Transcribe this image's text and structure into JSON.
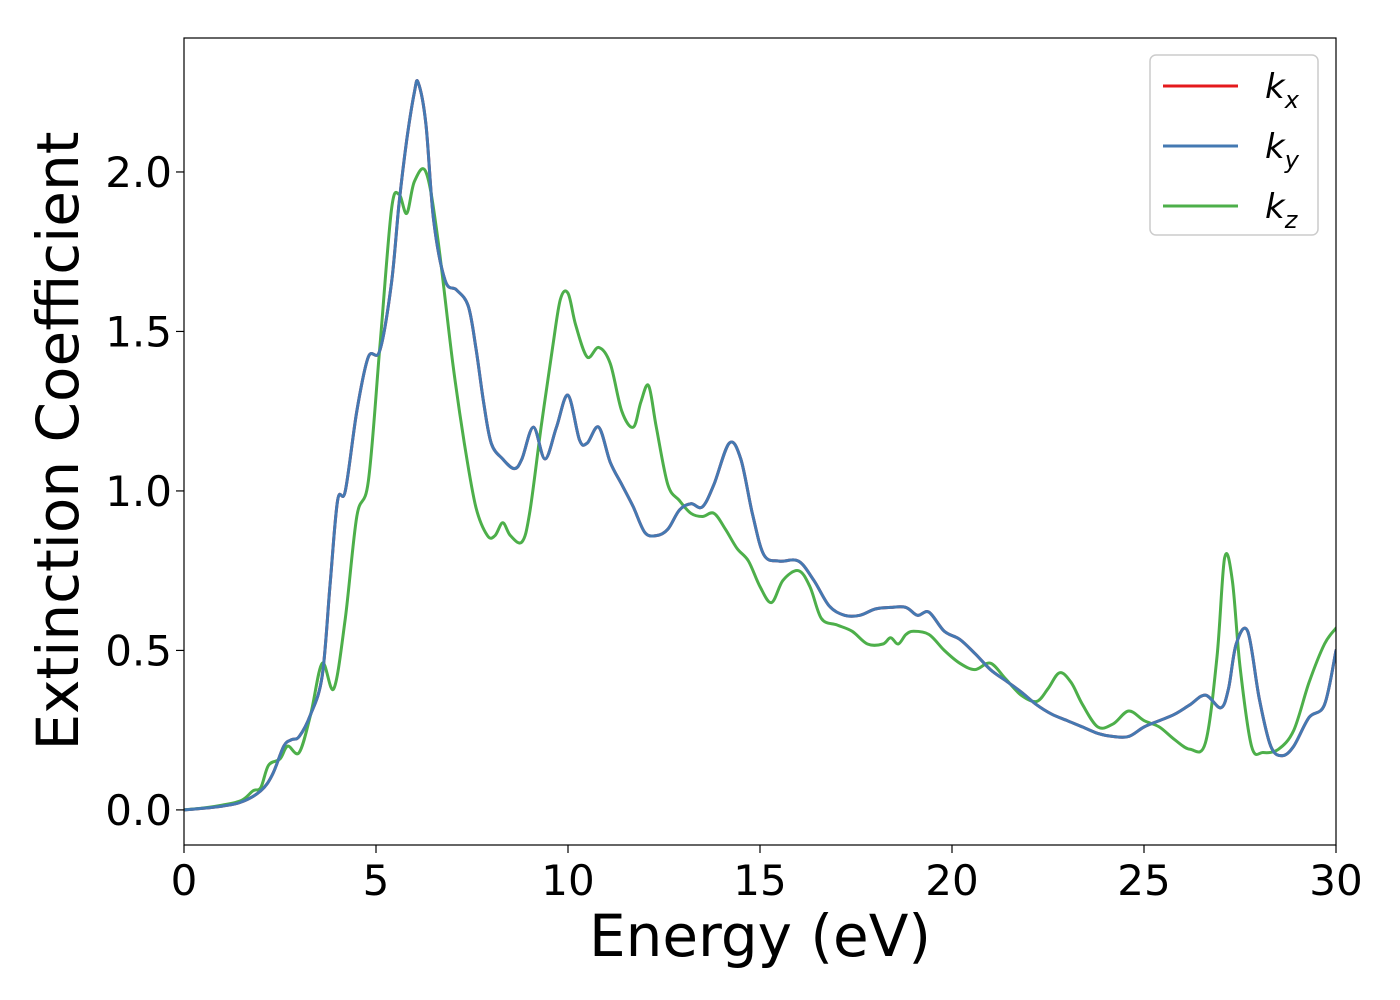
{
  "chart_data": {
    "type": "line",
    "title": "",
    "xlabel": "Energy (eV)",
    "ylabel": "Extinction Coefficient",
    "xlim": [
      0,
      30
    ],
    "ylim": [
      -0.11,
      2.42
    ],
    "xticks": [
      0,
      5,
      10,
      15,
      20,
      25,
      30
    ],
    "xtick_labels": [
      "0",
      "5",
      "10",
      "15",
      "20",
      "25",
      "30"
    ],
    "yticks": [
      0.0,
      0.5,
      1.0,
      1.5,
      2.0
    ],
    "ytick_labels": [
      "0.0",
      "0.5",
      "1.0",
      "1.5",
      "2.0"
    ],
    "grid": false,
    "legend_position": "top-right",
    "series": [
      {
        "name": "k_x",
        "label_main": "k",
        "label_sub": "x",
        "color": "#e41a1c",
        "x": [
          0,
          0.5,
          1,
          1.5,
          2,
          2.3,
          2.6,
          2.8,
          3,
          3.3,
          3.6,
          3.8,
          4,
          4.2,
          4.5,
          4.8,
          5.1,
          5.4,
          5.6,
          5.8,
          6,
          6.1,
          6.3,
          6.5,
          6.8,
          7.1,
          7.4,
          7.6,
          7.8,
          8,
          8.3,
          8.6,
          8.8,
          9.1,
          9.4,
          9.7,
          10,
          10.3,
          10.5,
          10.8,
          11.1,
          11.4,
          11.7,
          12,
          12.3,
          12.6,
          12.9,
          13.2,
          13.5,
          13.8,
          14.2,
          14.5,
          14.8,
          15.1,
          15.5,
          16,
          16.4,
          16.8,
          17.2,
          17.6,
          18,
          18.4,
          18.8,
          19.1,
          19.4,
          19.8,
          20.2,
          20.6,
          21,
          21.4,
          21.8,
          22.2,
          22.6,
          23,
          23.4,
          23.8,
          24.2,
          24.6,
          25,
          25.4,
          25.8,
          26.2,
          26.6,
          27,
          27.2,
          27.4,
          27.7,
          28,
          28.3,
          28.6,
          28.9,
          29.3,
          29.7,
          30
        ],
        "values": [
          0,
          0.005,
          0.012,
          0.025,
          0.06,
          0.11,
          0.2,
          0.22,
          0.23,
          0.3,
          0.42,
          0.7,
          0.97,
          1.0,
          1.25,
          1.42,
          1.44,
          1.65,
          1.9,
          2.1,
          2.25,
          2.28,
          2.15,
          1.85,
          1.66,
          1.63,
          1.58,
          1.45,
          1.28,
          1.15,
          1.1,
          1.07,
          1.1,
          1.2,
          1.1,
          1.2,
          1.3,
          1.16,
          1.15,
          1.2,
          1.09,
          1.02,
          0.95,
          0.87,
          0.86,
          0.88,
          0.94,
          0.96,
          0.95,
          1.02,
          1.15,
          1.1,
          0.93,
          0.8,
          0.78,
          0.78,
          0.72,
          0.64,
          0.61,
          0.61,
          0.63,
          0.635,
          0.635,
          0.61,
          0.62,
          0.56,
          0.535,
          0.49,
          0.44,
          0.405,
          0.37,
          0.33,
          0.3,
          0.28,
          0.26,
          0.24,
          0.23,
          0.23,
          0.26,
          0.28,
          0.3,
          0.33,
          0.36,
          0.32,
          0.38,
          0.52,
          0.56,
          0.35,
          0.2,
          0.17,
          0.2,
          0.29,
          0.33,
          0.5
        ]
      },
      {
        "name": "k_y",
        "label_main": "k",
        "label_sub": "y",
        "color": "#4479b2",
        "x": [
          0,
          0.5,
          1,
          1.5,
          2,
          2.3,
          2.6,
          2.8,
          3,
          3.3,
          3.6,
          3.8,
          4,
          4.2,
          4.5,
          4.8,
          5.1,
          5.4,
          5.6,
          5.8,
          6,
          6.1,
          6.3,
          6.5,
          6.8,
          7.1,
          7.4,
          7.6,
          7.8,
          8,
          8.3,
          8.6,
          8.8,
          9.1,
          9.4,
          9.7,
          10,
          10.3,
          10.5,
          10.8,
          11.1,
          11.4,
          11.7,
          12,
          12.3,
          12.6,
          12.9,
          13.2,
          13.5,
          13.8,
          14.2,
          14.5,
          14.8,
          15.1,
          15.5,
          16,
          16.4,
          16.8,
          17.2,
          17.6,
          18,
          18.4,
          18.8,
          19.1,
          19.4,
          19.8,
          20.2,
          20.6,
          21,
          21.4,
          21.8,
          22.2,
          22.6,
          23,
          23.4,
          23.8,
          24.2,
          24.6,
          25,
          25.4,
          25.8,
          26.2,
          26.6,
          27,
          27.2,
          27.4,
          27.7,
          28,
          28.3,
          28.6,
          28.9,
          29.3,
          29.7,
          30
        ],
        "values": [
          0,
          0.005,
          0.012,
          0.025,
          0.06,
          0.11,
          0.2,
          0.22,
          0.23,
          0.3,
          0.42,
          0.7,
          0.97,
          1.0,
          1.25,
          1.42,
          1.44,
          1.65,
          1.9,
          2.1,
          2.25,
          2.28,
          2.15,
          1.85,
          1.66,
          1.63,
          1.58,
          1.45,
          1.28,
          1.15,
          1.1,
          1.07,
          1.1,
          1.2,
          1.1,
          1.2,
          1.3,
          1.16,
          1.15,
          1.2,
          1.09,
          1.02,
          0.95,
          0.87,
          0.86,
          0.88,
          0.94,
          0.96,
          0.95,
          1.02,
          1.15,
          1.1,
          0.93,
          0.8,
          0.78,
          0.78,
          0.72,
          0.64,
          0.61,
          0.61,
          0.63,
          0.635,
          0.635,
          0.61,
          0.62,
          0.56,
          0.535,
          0.49,
          0.44,
          0.405,
          0.37,
          0.33,
          0.3,
          0.28,
          0.26,
          0.24,
          0.23,
          0.23,
          0.26,
          0.28,
          0.3,
          0.33,
          0.36,
          0.32,
          0.38,
          0.52,
          0.56,
          0.35,
          0.2,
          0.17,
          0.2,
          0.29,
          0.33,
          0.5
        ]
      },
      {
        "name": "k_z",
        "label_main": "k",
        "label_sub": "z",
        "color": "#4daf4a",
        "x": [
          0,
          0.5,
          1,
          1.5,
          1.8,
          2,
          2.2,
          2.5,
          2.7,
          3,
          3.3,
          3.6,
          3.9,
          4.2,
          4.5,
          4.8,
          5.1,
          5.4,
          5.6,
          5.8,
          6,
          6.3,
          6.6,
          7,
          7.3,
          7.6,
          7.9,
          8.1,
          8.3,
          8.5,
          8.8,
          9,
          9.3,
          9.6,
          9.8,
          10,
          10.2,
          10.5,
          10.8,
          11.1,
          11.4,
          11.7,
          11.9,
          12.1,
          12.3,
          12.6,
          12.9,
          13.2,
          13.5,
          13.8,
          14.1,
          14.4,
          14.7,
          15,
          15.3,
          15.6,
          16,
          16.3,
          16.6,
          17,
          17.4,
          17.8,
          18.2,
          18.4,
          18.6,
          18.8,
          19,
          19.4,
          19.8,
          20.2,
          20.6,
          21,
          21.4,
          21.8,
          22.2,
          22.5,
          22.8,
          23.1,
          23.4,
          23.8,
          24.2,
          24.6,
          25,
          25.4,
          25.8,
          26.2,
          26.6,
          26.9,
          27.1,
          27.3,
          27.5,
          27.8,
          28.1,
          28.5,
          28.9,
          29.3,
          29.7,
          30
        ],
        "values": [
          0,
          0.006,
          0.015,
          0.03,
          0.06,
          0.07,
          0.14,
          0.16,
          0.2,
          0.18,
          0.3,
          0.46,
          0.38,
          0.6,
          0.92,
          1.03,
          1.45,
          1.88,
          1.93,
          1.87,
          1.97,
          2.0,
          1.8,
          1.4,
          1.15,
          0.95,
          0.86,
          0.86,
          0.9,
          0.86,
          0.84,
          0.93,
          1.2,
          1.45,
          1.6,
          1.62,
          1.52,
          1.42,
          1.45,
          1.4,
          1.25,
          1.2,
          1.28,
          1.33,
          1.2,
          1.02,
          0.97,
          0.93,
          0.92,
          0.93,
          0.88,
          0.82,
          0.78,
          0.7,
          0.65,
          0.72,
          0.75,
          0.7,
          0.6,
          0.58,
          0.56,
          0.52,
          0.52,
          0.54,
          0.52,
          0.55,
          0.56,
          0.55,
          0.5,
          0.46,
          0.44,
          0.46,
          0.41,
          0.36,
          0.34,
          0.38,
          0.43,
          0.4,
          0.33,
          0.26,
          0.27,
          0.31,
          0.28,
          0.26,
          0.22,
          0.19,
          0.21,
          0.48,
          0.79,
          0.72,
          0.45,
          0.2,
          0.18,
          0.19,
          0.25,
          0.4,
          0.52,
          0.57
        ]
      }
    ]
  }
}
